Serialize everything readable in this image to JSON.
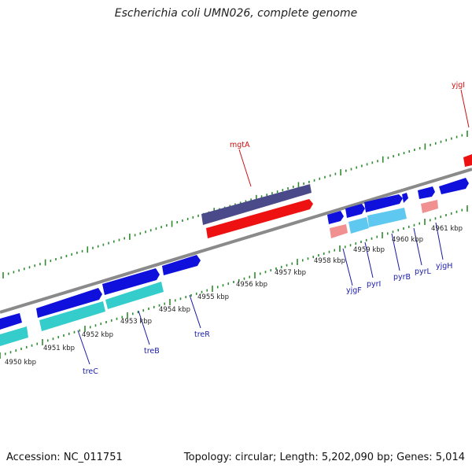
{
  "title": "Escherichia coli UMN026, complete genome",
  "footer": {
    "accession": "Accession: NC_011751",
    "summary": "Topology: circular; Length: 5,202,090 bp; Genes: 5,014"
  },
  "colors": {
    "backbone": "#8a8a8a",
    "tick": "#2e8b2e",
    "cds_forward": "#1010dd",
    "cds_reverse": "#1010dd",
    "rna_forward": "#5fc8f0",
    "rna_reverse": "#35cccc",
    "highlight_gene": "#ee1111",
    "highlight_label": "#cc1111",
    "gene_label": "#1a1aa8",
    "mgta_feature": "#4a4a8a",
    "pseudo": "#f09090"
  },
  "kbp_labels": [
    "4950 kbp",
    "4951 kbp",
    "4952 kbp",
    "4953 kbp",
    "4954 kbp",
    "4955 kbp",
    "4956 kbp",
    "4957 kbp",
    "4958 kbp",
    "4959 kbp",
    "4960 kbp",
    "4961 kbp"
  ],
  "gene_labels": [
    {
      "name": "mgtA",
      "color": "highlight"
    },
    {
      "name": "yjgI",
      "color": "highlight"
    },
    {
      "name": "treC",
      "color": "normal"
    },
    {
      "name": "treB",
      "color": "normal"
    },
    {
      "name": "treR",
      "color": "normal"
    },
    {
      "name": "yjgF",
      "color": "normal"
    },
    {
      "name": "pyrI",
      "color": "normal"
    },
    {
      "name": "pyrB",
      "color": "normal"
    },
    {
      "name": "pyrL",
      "color": "normal"
    },
    {
      "name": "yjgH",
      "color": "normal"
    }
  ]
}
